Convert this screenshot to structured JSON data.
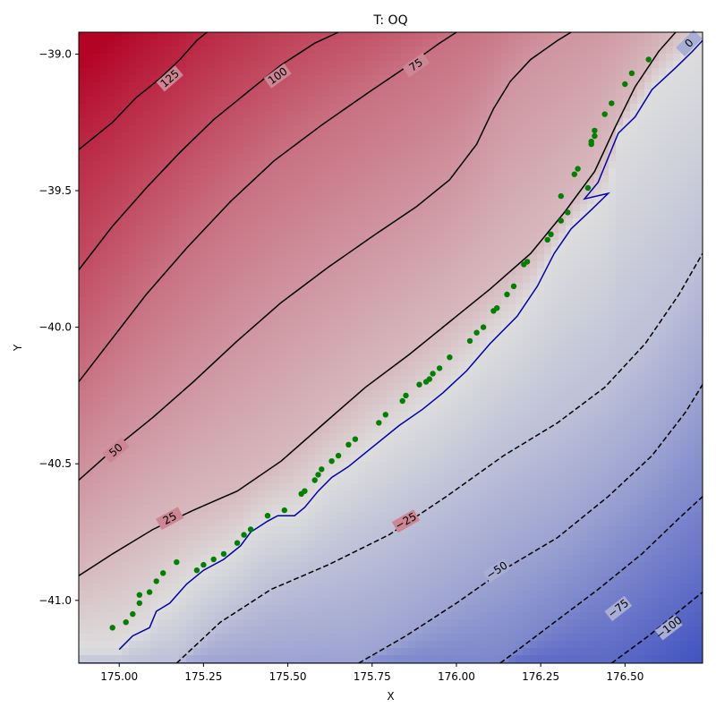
{
  "chart_data": {
    "type": "contour",
    "title": "T: OQ",
    "xlabel": "X",
    "ylabel": "Y",
    "xlim": [
      174.88,
      176.73
    ],
    "ylim": [
      -41.23,
      -38.92
    ],
    "x_ticks": [
      175.0,
      175.25,
      175.5,
      175.75,
      176.0,
      176.25,
      176.5
    ],
    "x_tick_labels": [
      "175.00",
      "175.25",
      "175.50",
      "175.75",
      "176.00",
      "176.25",
      "176.50"
    ],
    "y_ticks": [
      -39.0,
      -39.5,
      -40.0,
      -40.5,
      -41.0
    ],
    "y_tick_labels": [
      "−39.0",
      "−39.5",
      "−40.0",
      "−40.5",
      "−41.0"
    ],
    "colormap": {
      "low": "#3b4cc0",
      "mid": "#dddddd",
      "high": "#b40426",
      "vmin": -125,
      "vmax": 150
    },
    "contours": [
      {
        "level": 125,
        "label": "125",
        "style": "solid",
        "points": [
          [
            174.88,
            -39.35
          ],
          [
            174.98,
            -39.25
          ],
          [
            175.05,
            -39.16
          ],
          [
            175.12,
            -39.09
          ],
          [
            175.18,
            -39.02
          ],
          [
            175.23,
            -38.95
          ],
          [
            175.26,
            -38.92
          ]
        ]
      },
      {
        "level": 100,
        "label": "100",
        "style": "solid",
        "points": [
          [
            174.88,
            -39.79
          ],
          [
            174.98,
            -39.63
          ],
          [
            175.08,
            -39.49
          ],
          [
            175.18,
            -39.36
          ],
          [
            175.28,
            -39.24
          ],
          [
            175.38,
            -39.14
          ],
          [
            175.48,
            -39.04
          ],
          [
            175.58,
            -38.96
          ],
          [
            175.65,
            -38.92
          ]
        ]
      },
      {
        "level": 75,
        "label": "75",
        "style": "solid",
        "points": [
          [
            174.88,
            -40.2
          ],
          [
            174.98,
            -40.04
          ],
          [
            175.08,
            -39.88
          ],
          [
            175.2,
            -39.71
          ],
          [
            175.33,
            -39.54
          ],
          [
            175.46,
            -39.39
          ],
          [
            175.6,
            -39.26
          ],
          [
            175.74,
            -39.14
          ],
          [
            175.86,
            -39.04
          ],
          [
            175.95,
            -38.96
          ],
          [
            176.0,
            -38.92
          ]
        ]
      },
      {
        "level": 50,
        "label": "50",
        "style": "solid",
        "points": [
          [
            174.88,
            -40.56
          ],
          [
            174.98,
            -40.45
          ],
          [
            175.1,
            -40.33
          ],
          [
            175.22,
            -40.2
          ],
          [
            175.35,
            -40.05
          ],
          [
            175.48,
            -39.91
          ],
          [
            175.62,
            -39.78
          ],
          [
            175.76,
            -39.66
          ],
          [
            175.88,
            -39.56
          ],
          [
            175.98,
            -39.46
          ],
          [
            176.06,
            -39.33
          ],
          [
            176.11,
            -39.2
          ],
          [
            176.16,
            -39.1
          ],
          [
            176.22,
            -39.02
          ],
          [
            176.3,
            -38.95
          ],
          [
            176.34,
            -38.92
          ]
        ]
      },
      {
        "level": 25,
        "label": "25",
        "style": "solid",
        "points": [
          [
            174.88,
            -40.91
          ],
          [
            174.98,
            -40.83
          ],
          [
            175.1,
            -40.74
          ],
          [
            175.22,
            -40.67
          ],
          [
            175.35,
            -40.6
          ],
          [
            175.48,
            -40.49
          ],
          [
            175.6,
            -40.36
          ],
          [
            175.73,
            -40.22
          ],
          [
            175.86,
            -40.1
          ],
          [
            175.98,
            -39.98
          ],
          [
            176.1,
            -39.86
          ],
          [
            176.22,
            -39.73
          ],
          [
            176.32,
            -39.58
          ],
          [
            176.41,
            -39.43
          ],
          [
            176.47,
            -39.27
          ],
          [
            176.53,
            -39.12
          ],
          [
            176.6,
            -38.99
          ],
          [
            176.65,
            -38.92
          ]
        ]
      },
      {
        "level": 0,
        "label": "0",
        "style": "solid",
        "color": "#0000aa",
        "points": [
          [
            175.0,
            -41.18
          ],
          [
            175.04,
            -41.13
          ],
          [
            175.09,
            -41.1
          ],
          [
            175.11,
            -41.04
          ],
          [
            175.15,
            -41.01
          ],
          [
            175.2,
            -40.94
          ],
          [
            175.25,
            -40.89
          ],
          [
            175.31,
            -40.85
          ],
          [
            175.36,
            -40.8
          ],
          [
            175.39,
            -40.75
          ],
          [
            175.44,
            -40.71
          ],
          [
            175.47,
            -40.69
          ],
          [
            175.52,
            -40.69
          ],
          [
            175.55,
            -40.66
          ],
          [
            175.59,
            -40.6
          ],
          [
            175.63,
            -40.55
          ],
          [
            175.68,
            -40.51
          ],
          [
            175.74,
            -40.45
          ],
          [
            175.83,
            -40.36
          ],
          [
            175.9,
            -40.3
          ],
          [
            175.96,
            -40.24
          ],
          [
            176.03,
            -40.16
          ],
          [
            176.1,
            -40.06
          ],
          [
            176.18,
            -39.96
          ],
          [
            176.24,
            -39.85
          ],
          [
            176.29,
            -39.73
          ],
          [
            176.34,
            -39.64
          ],
          [
            176.4,
            -39.57
          ],
          [
            176.45,
            -39.51
          ],
          [
            176.38,
            -39.53
          ],
          [
            176.42,
            -39.47
          ],
          [
            176.45,
            -39.38
          ],
          [
            176.48,
            -39.29
          ],
          [
            176.53,
            -39.23
          ],
          [
            176.58,
            -39.13
          ],
          [
            176.65,
            -39.05
          ],
          [
            176.7,
            -38.99
          ],
          [
            176.73,
            -38.95
          ]
        ]
      },
      {
        "level": -25,
        "label": "−25",
        "style": "dashed",
        "points": [
          [
            175.17,
            -41.23
          ],
          [
            175.3,
            -41.08
          ],
          [
            175.45,
            -40.96
          ],
          [
            175.62,
            -40.87
          ],
          [
            175.8,
            -40.76
          ],
          [
            175.97,
            -40.62
          ],
          [
            176.14,
            -40.47
          ],
          [
            176.3,
            -40.35
          ],
          [
            176.44,
            -40.22
          ],
          [
            176.56,
            -40.06
          ],
          [
            176.66,
            -39.88
          ],
          [
            176.73,
            -39.73
          ]
        ]
      },
      {
        "level": -50,
        "label": "−50",
        "style": "dashed",
        "points": [
          [
            175.71,
            -41.23
          ],
          [
            175.85,
            -41.13
          ],
          [
            176.0,
            -41.01
          ],
          [
            176.15,
            -40.88
          ],
          [
            176.3,
            -40.77
          ],
          [
            176.45,
            -40.62
          ],
          [
            176.58,
            -40.47
          ],
          [
            176.68,
            -40.31
          ],
          [
            176.73,
            -40.21
          ]
        ]
      },
      {
        "level": -75,
        "label": "−75",
        "style": "dashed",
        "points": [
          [
            176.13,
            -41.23
          ],
          [
            176.28,
            -41.09
          ],
          [
            176.42,
            -40.96
          ],
          [
            176.55,
            -40.83
          ],
          [
            176.66,
            -40.7
          ],
          [
            176.73,
            -40.62
          ]
        ]
      },
      {
        "level": -100,
        "label": "−100",
        "style": "dashed",
        "points": [
          [
            176.46,
            -41.23
          ],
          [
            176.57,
            -41.13
          ],
          [
            176.66,
            -41.04
          ],
          [
            176.73,
            -40.97
          ]
        ]
      }
    ],
    "contour_label_positions": [
      {
        "label": "125",
        "x": 175.15,
        "y": -39.09
      },
      {
        "label": "100",
        "x": 175.47,
        "y": -39.08
      },
      {
        "label": "75",
        "x": 175.88,
        "y": -39.04
      },
      {
        "label": "50",
        "x": 174.99,
        "y": -40.45
      },
      {
        "label": "25",
        "x": 175.15,
        "y": -40.7
      },
      {
        "label": "0",
        "x": 176.69,
        "y": -38.96
      },
      {
        "label": "−25",
        "x": 175.85,
        "y": -40.71
      },
      {
        "label": "−50",
        "x": 176.12,
        "y": -40.89
      },
      {
        "label": "−75",
        "x": 176.48,
        "y": -41.03
      },
      {
        "label": "−100",
        "x": 176.63,
        "y": -41.1
      }
    ],
    "points": {
      "color": "#008000",
      "x": [
        174.98,
        175.02,
        175.04,
        175.06,
        175.06,
        175.09,
        175.11,
        175.13,
        175.17,
        175.23,
        175.25,
        175.28,
        175.31,
        175.35,
        175.37,
        175.39,
        175.44,
        175.49,
        175.54,
        175.55,
        175.58,
        175.59,
        175.6,
        175.63,
        175.65,
        175.68,
        175.7,
        175.77,
        175.79,
        175.84,
        175.85,
        175.89,
        175.91,
        175.92,
        175.93,
        175.95,
        175.98,
        176.04,
        176.06,
        176.08,
        176.11,
        176.12,
        176.15,
        176.17,
        176.2,
        176.21,
        176.27,
        176.28,
        176.31,
        176.31,
        176.33,
        176.35,
        176.36,
        176.39,
        176.4,
        176.4,
        176.41,
        176.41,
        176.44,
        176.46,
        176.5,
        176.52,
        176.57
      ],
      "y": [
        -41.1,
        -41.08,
        -41.05,
        -41.01,
        -40.98,
        -40.97,
        -40.93,
        -40.9,
        -40.86,
        -40.89,
        -40.87,
        -40.85,
        -40.83,
        -40.79,
        -40.76,
        -40.74,
        -40.69,
        -40.67,
        -40.61,
        -40.6,
        -40.56,
        -40.54,
        -40.52,
        -40.49,
        -40.47,
        -40.43,
        -40.41,
        -40.35,
        -40.32,
        -40.27,
        -40.25,
        -40.21,
        -40.2,
        -40.19,
        -40.17,
        -40.15,
        -40.11,
        -40.05,
        -40.02,
        -40.0,
        -39.94,
        -39.93,
        -39.88,
        -39.85,
        -39.77,
        -39.76,
        -39.68,
        -39.66,
        -39.61,
        -39.52,
        -39.58,
        -39.44,
        -39.42,
        -39.49,
        -39.33,
        -39.32,
        -39.3,
        -39.28,
        -39.22,
        -39.18,
        -39.11,
        -39.07,
        -39.02
      ]
    }
  }
}
